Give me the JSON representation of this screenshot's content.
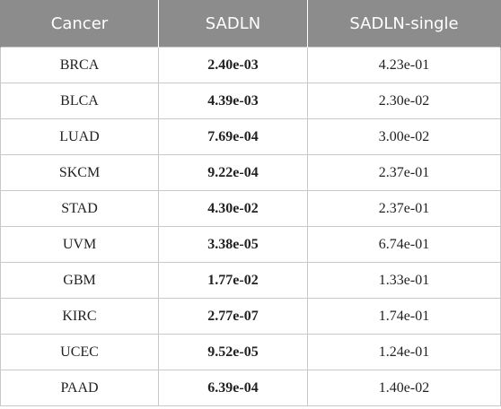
{
  "table": {
    "headers": [
      "Cancer",
      "SADLN",
      "SADLN-single"
    ],
    "rows": [
      [
        "BRCA",
        "2.40e-03",
        "4.23e-01"
      ],
      [
        "BLCA",
        "4.39e-03",
        "2.30e-02"
      ],
      [
        "LUAD",
        "7.69e-04",
        "3.00e-02"
      ],
      [
        "SKCM",
        "9.22e-04",
        "2.37e-01"
      ],
      [
        "STAD",
        "4.30e-02",
        "2.37e-01"
      ],
      [
        "UVM",
        "3.38e-05",
        "6.74e-01"
      ],
      [
        "GBM",
        "1.77e-02",
        "1.33e-01"
      ],
      [
        "KIRC",
        "2.77e-07",
        "1.74e-01"
      ],
      [
        "UCEC",
        "9.52e-05",
        "1.24e-01"
      ],
      [
        "PAAD",
        "6.39e-04",
        "1.40e-02"
      ]
    ]
  },
  "colors": {
    "header_bg": "#8c8c8c",
    "header_text": "#ffffff",
    "border": "#c8c8c8"
  }
}
